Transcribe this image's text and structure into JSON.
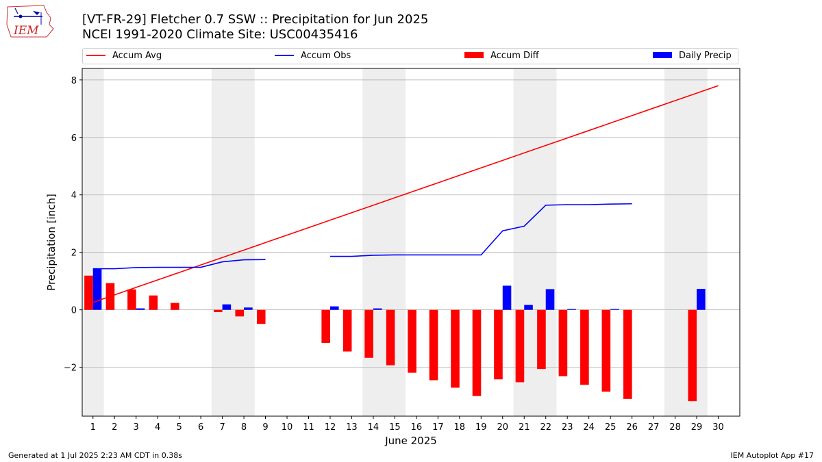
{
  "header": {
    "title_line1": "[VT-FR-29] Fletcher 0.7 SSW :: Precipitation for Jun 2025",
    "title_line2": "NCEI 1991-2020 Climate Site: USC00435416",
    "logo_text": "IEM"
  },
  "legend": {
    "items": [
      {
        "label": "Accum Avg",
        "kind": "line",
        "color": "#ff0000"
      },
      {
        "label": "Accum Obs",
        "kind": "line",
        "color": "#0000ff"
      },
      {
        "label": "Accum Diff",
        "kind": "box",
        "color": "#ff0000"
      },
      {
        "label": "Daily Precip",
        "kind": "box",
        "color": "#0000ff"
      }
    ]
  },
  "footer": {
    "left": "Generated at 1 Jul 2025 2:23 AM CDT in 0.38s",
    "right": "IEM Autoplot App #17"
  },
  "chart_data": {
    "type": "bar",
    "xlabel": "June 2025",
    "ylabel": "Precipitation [inch]",
    "xlim": [
      0.5,
      31
    ],
    "ylim": [
      -3.7,
      8.4
    ],
    "yticks": [
      -2,
      0,
      2,
      4,
      6,
      8
    ],
    "ytick_labels": [
      "−2",
      "0",
      "2",
      "4",
      "6",
      "8"
    ],
    "x": [
      1,
      2,
      3,
      4,
      5,
      6,
      7,
      8,
      9,
      10,
      11,
      12,
      13,
      14,
      15,
      16,
      17,
      18,
      19,
      20,
      21,
      22,
      23,
      24,
      25,
      26,
      27,
      28,
      29,
      30
    ],
    "grid": "horizontal",
    "weekend_shading": [
      [
        0.5,
        1.5
      ],
      [
        6.5,
        8.5
      ],
      [
        13.5,
        15.5
      ],
      [
        20.5,
        22.5
      ],
      [
        27.5,
        29.5
      ]
    ],
    "series": [
      {
        "name": "Accum Avg",
        "type": "line",
        "color": "#ff0000",
        "values": [
          0.26,
          0.52,
          0.78,
          1.04,
          1.3,
          1.56,
          1.82,
          2.08,
          2.34,
          2.6,
          2.86,
          3.12,
          3.38,
          3.64,
          3.9,
          4.16,
          4.42,
          4.68,
          4.94,
          5.2,
          5.46,
          5.72,
          5.98,
          6.24,
          6.5,
          6.76,
          7.02,
          7.28,
          7.54,
          7.8
        ]
      },
      {
        "name": "Accum Obs",
        "type": "line",
        "color": "#0000ff",
        "values": [
          1.43,
          1.43,
          1.47,
          1.48,
          1.48,
          1.48,
          1.67,
          1.74,
          1.75,
          null,
          null,
          1.86,
          1.86,
          1.9,
          1.91,
          1.91,
          1.91,
          1.91,
          1.91,
          2.75,
          2.91,
          3.64,
          3.66,
          3.66,
          3.68,
          3.69,
          null,
          null,
          null,
          null
        ]
      },
      {
        "name": "Accum Diff",
        "type": "bar",
        "color": "#ff0000",
        "values": [
          1.19,
          0.93,
          0.71,
          0.5,
          0.24,
          null,
          -0.08,
          -0.23,
          -0.49,
          null,
          null,
          -1.15,
          -1.45,
          -1.67,
          -1.93,
          -2.19,
          -2.45,
          -2.71,
          -3.0,
          -2.42,
          -2.52,
          -2.06,
          -2.31,
          -2.61,
          -2.85,
          -3.1,
          null,
          null,
          -3.18,
          null
        ]
      },
      {
        "name": "Daily Precip",
        "type": "bar",
        "color": "#0000ff",
        "values": [
          1.43,
          null,
          0.05,
          null,
          null,
          null,
          0.19,
          0.08,
          null,
          null,
          null,
          0.12,
          null,
          0.05,
          null,
          null,
          null,
          null,
          null,
          0.84,
          0.17,
          0.72,
          0.03,
          null,
          0.03,
          null,
          null,
          null,
          0.73,
          null
        ]
      }
    ]
  }
}
